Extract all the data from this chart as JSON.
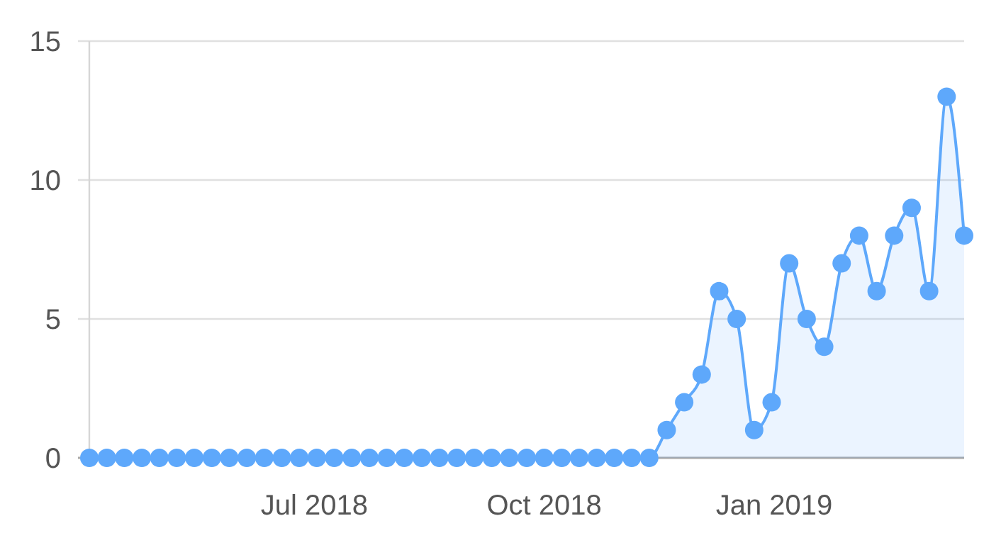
{
  "chart_data": {
    "type": "area",
    "x": [
      "2018-04-02",
      "2018-04-09",
      "2018-04-16",
      "2018-04-23",
      "2018-04-30",
      "2018-05-07",
      "2018-05-14",
      "2018-05-21",
      "2018-05-28",
      "2018-06-04",
      "2018-06-11",
      "2018-06-18",
      "2018-06-25",
      "2018-07-02",
      "2018-07-09",
      "2018-07-16",
      "2018-07-23",
      "2018-07-30",
      "2018-08-06",
      "2018-08-13",
      "2018-08-20",
      "2018-08-27",
      "2018-09-03",
      "2018-09-10",
      "2018-09-17",
      "2018-09-24",
      "2018-10-01",
      "2018-10-08",
      "2018-10-15",
      "2018-10-22",
      "2018-10-29",
      "2018-11-05",
      "2018-11-12",
      "2018-11-19",
      "2018-11-26",
      "2018-12-03",
      "2018-12-10",
      "2018-12-17",
      "2018-12-24",
      "2018-12-31",
      "2019-01-07",
      "2019-01-14",
      "2019-01-21",
      "2019-01-28",
      "2019-02-04",
      "2019-02-11",
      "2019-02-18",
      "2019-02-25",
      "2019-03-04",
      "2019-03-11",
      "2019-03-18"
    ],
    "series": [
      {
        "color": "#5ea8fb",
        "values": [
          0,
          0,
          0,
          0,
          0,
          0,
          0,
          0,
          0,
          0,
          0,
          0,
          0,
          0,
          0,
          0,
          0,
          0,
          0,
          0,
          0,
          0,
          0,
          0,
          0,
          0,
          0,
          0,
          0,
          0,
          0,
          0,
          0,
          1,
          2,
          3,
          6,
          5,
          1,
          2,
          7,
          5,
          4,
          7,
          8,
          6,
          8,
          9,
          6,
          13,
          8
        ]
      }
    ],
    "xlim": [
      "2018-04-02",
      "2019-03-18"
    ],
    "xticks": [
      {
        "value": "2018-07-01",
        "label": "Jul 2018"
      },
      {
        "value": "2018-10-01",
        "label": "Oct 2018"
      },
      {
        "value": "2019-01-01",
        "label": "Jan 2019"
      }
    ],
    "ylim": [
      0,
      15
    ],
    "yticks": [
      0,
      5,
      10,
      15
    ],
    "grid": "y",
    "marker": "circle",
    "line_style": "solid"
  }
}
